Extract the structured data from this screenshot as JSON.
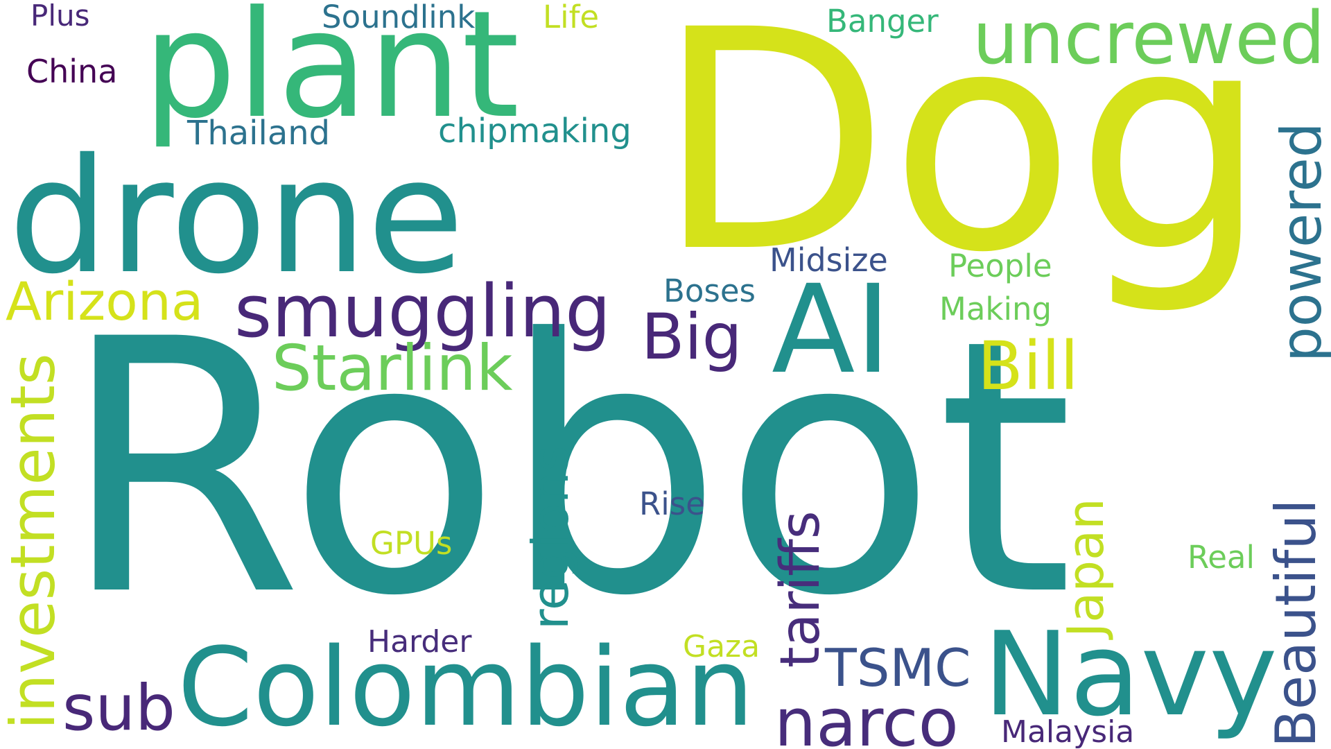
{
  "words": [
    {
      "text": "Robot",
      "color": "#21908d"
    },
    {
      "text": "Dog",
      "color": "#d5e21a"
    },
    {
      "text": "drone",
      "color": "#21908d"
    },
    {
      "text": "plant",
      "color": "#35b779"
    },
    {
      "text": "AI",
      "color": "#21908d"
    },
    {
      "text": "uncrewed",
      "color": "#6ccd5a"
    },
    {
      "text": "Colombian",
      "color": "#21908d"
    },
    {
      "text": "Navy",
      "color": "#21908d"
    },
    {
      "text": "smuggling",
      "color": "#482878"
    },
    {
      "text": "Starlink",
      "color": "#6ccd5a"
    },
    {
      "text": "Arizona",
      "color": "#d5e21a"
    },
    {
      "text": "investments",
      "color": "#c2df23"
    },
    {
      "text": "powered",
      "color": "#2c728e"
    },
    {
      "text": "Beautiful",
      "color": "#3b528b"
    },
    {
      "text": "Bill",
      "color": "#d5e21a"
    },
    {
      "text": "Big",
      "color": "#482878"
    },
    {
      "text": "tariffs",
      "color": "#472d7b"
    },
    {
      "text": "regions",
      "color": "#21908d"
    },
    {
      "text": "narco",
      "color": "#472d7b"
    },
    {
      "text": "sub",
      "color": "#482878"
    },
    {
      "text": "TSMC",
      "color": "#3b528b"
    },
    {
      "text": "Japan",
      "color": "#c2df23"
    },
    {
      "text": "Thailand",
      "color": "#2c728e"
    },
    {
      "text": "chipmaking",
      "color": "#21908d"
    },
    {
      "text": "Soundlink",
      "color": "#2c728e"
    },
    {
      "text": "Life",
      "color": "#c2df23"
    },
    {
      "text": "Banger",
      "color": "#35b779"
    },
    {
      "text": "Plus",
      "color": "#482878"
    },
    {
      "text": "China",
      "color": "#440154"
    },
    {
      "text": "Midsize",
      "color": "#3b528b"
    },
    {
      "text": "People",
      "color": "#6ccd5a"
    },
    {
      "text": "Boses",
      "color": "#2c728e"
    },
    {
      "text": "Making",
      "color": "#6ccd5a"
    },
    {
      "text": "Rise",
      "color": "#3b528b"
    },
    {
      "text": "GPUs",
      "color": "#c2df23"
    },
    {
      "text": "Harder",
      "color": "#472d7b"
    },
    {
      "text": "Gaza",
      "color": "#c2df23"
    },
    {
      "text": "Real",
      "color": "#6ccd5a"
    },
    {
      "text": "Malaysia",
      "color": "#482878"
    }
  ]
}
